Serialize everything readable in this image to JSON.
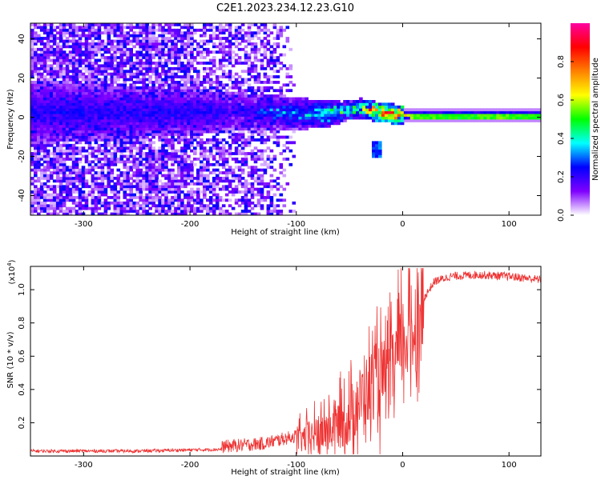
{
  "title": "C2E1.2023.234.12.23.G10",
  "chart_data": [
    {
      "type": "heatmap",
      "xlabel": "Height of straight line (km)",
      "ylabel": "Frequency (Hz)",
      "xlim": [
        -350,
        130
      ],
      "ylim": [
        -50,
        48
      ],
      "x_ticks": [
        -300,
        -200,
        -100,
        0,
        100
      ],
      "y_ticks": [
        -40,
        -20,
        0,
        20,
        40
      ],
      "colorbar": {
        "label": "Normalized spectral amplitude",
        "range": [
          0,
          1
        ],
        "ticks": [
          0.0,
          0.2,
          0.4,
          0.6,
          0.8
        ],
        "tick_labels": [
          "0.0",
          "0.2",
          "0.4",
          "0.6",
          "0.8"
        ],
        "colormap": "rainbow",
        "colors": [
          "#ffffff",
          "#7f00ff",
          "#0000ff",
          "#00ffff",
          "#00ff00",
          "#ffff00",
          "#ff8000",
          "#ff0000",
          "#ff00a0"
        ]
      },
      "features": {
        "noise_region_x": [
          -350,
          -130
        ],
        "signal_track": [
          {
            "x": -160,
            "freq": 2,
            "amp": 0.22
          },
          {
            "x": -120,
            "freq": 2,
            "amp": 0.3
          },
          {
            "x": -90,
            "freq": 1,
            "amp": 0.38
          },
          {
            "x": -60,
            "freq": 2,
            "amp": 0.45
          },
          {
            "x": -40,
            "freq": 4,
            "amp": 0.5
          },
          {
            "x": -25,
            "freq": 2,
            "amp": 0.82
          },
          {
            "x": -10,
            "freq": 1,
            "amp": 0.85
          },
          {
            "x": 10,
            "freq": 0,
            "amp": 0.55
          },
          {
            "x": 50,
            "freq": 0,
            "amp": 0.5
          },
          {
            "x": 90,
            "freq": 0,
            "amp": 0.55
          },
          {
            "x": 130,
            "freq": 0,
            "amp": 0.5
          }
        ],
        "secondary_blob": {
          "x": -26,
          "freq": -17,
          "amp": 0.3
        }
      }
    },
    {
      "type": "line",
      "xlabel": "Height of straight line (km)",
      "ylabel": "SNR (10 * v/v)",
      "y_multiplier": "(x10",
      "y_multiplier_exp": "4",
      "y_multiplier_close": ")",
      "xlim": [
        -350,
        130
      ],
      "ylim": [
        0,
        1.14
      ],
      "x_ticks": [
        -300,
        -200,
        -100,
        0,
        100
      ],
      "y_ticks": [
        0.2,
        0.4,
        0.6,
        0.8,
        1.0
      ],
      "y_tick_labels": [
        "0.2",
        "0.4",
        "0.6",
        "0.8",
        "1.0"
      ],
      "line_color": "#ee3333",
      "envelope": [
        {
          "x": -350,
          "y": 0.03
        },
        {
          "x": -250,
          "y": 0.03
        },
        {
          "x": -170,
          "y": 0.04
        },
        {
          "x": -130,
          "y": 0.06
        },
        {
          "x": -110,
          "y": 0.09
        },
        {
          "x": -90,
          "y": 0.12
        },
        {
          "x": -70,
          "y": 0.17
        },
        {
          "x": -50,
          "y": 0.26
        },
        {
          "x": -40,
          "y": 0.36
        },
        {
          "x": -30,
          "y": 0.45
        },
        {
          "x": -22,
          "y": 0.5
        },
        {
          "x": -15,
          "y": 0.47
        },
        {
          "x": -10,
          "y": 0.55
        },
        {
          "x": 0,
          "y": 0.72
        },
        {
          "x": 10,
          "y": 0.8
        },
        {
          "x": 20,
          "y": 0.95
        },
        {
          "x": 30,
          "y": 1.05
        },
        {
          "x": 45,
          "y": 1.08
        },
        {
          "x": 70,
          "y": 1.09
        },
        {
          "x": 100,
          "y": 1.08
        },
        {
          "x": 130,
          "y": 1.06
        }
      ]
    }
  ]
}
